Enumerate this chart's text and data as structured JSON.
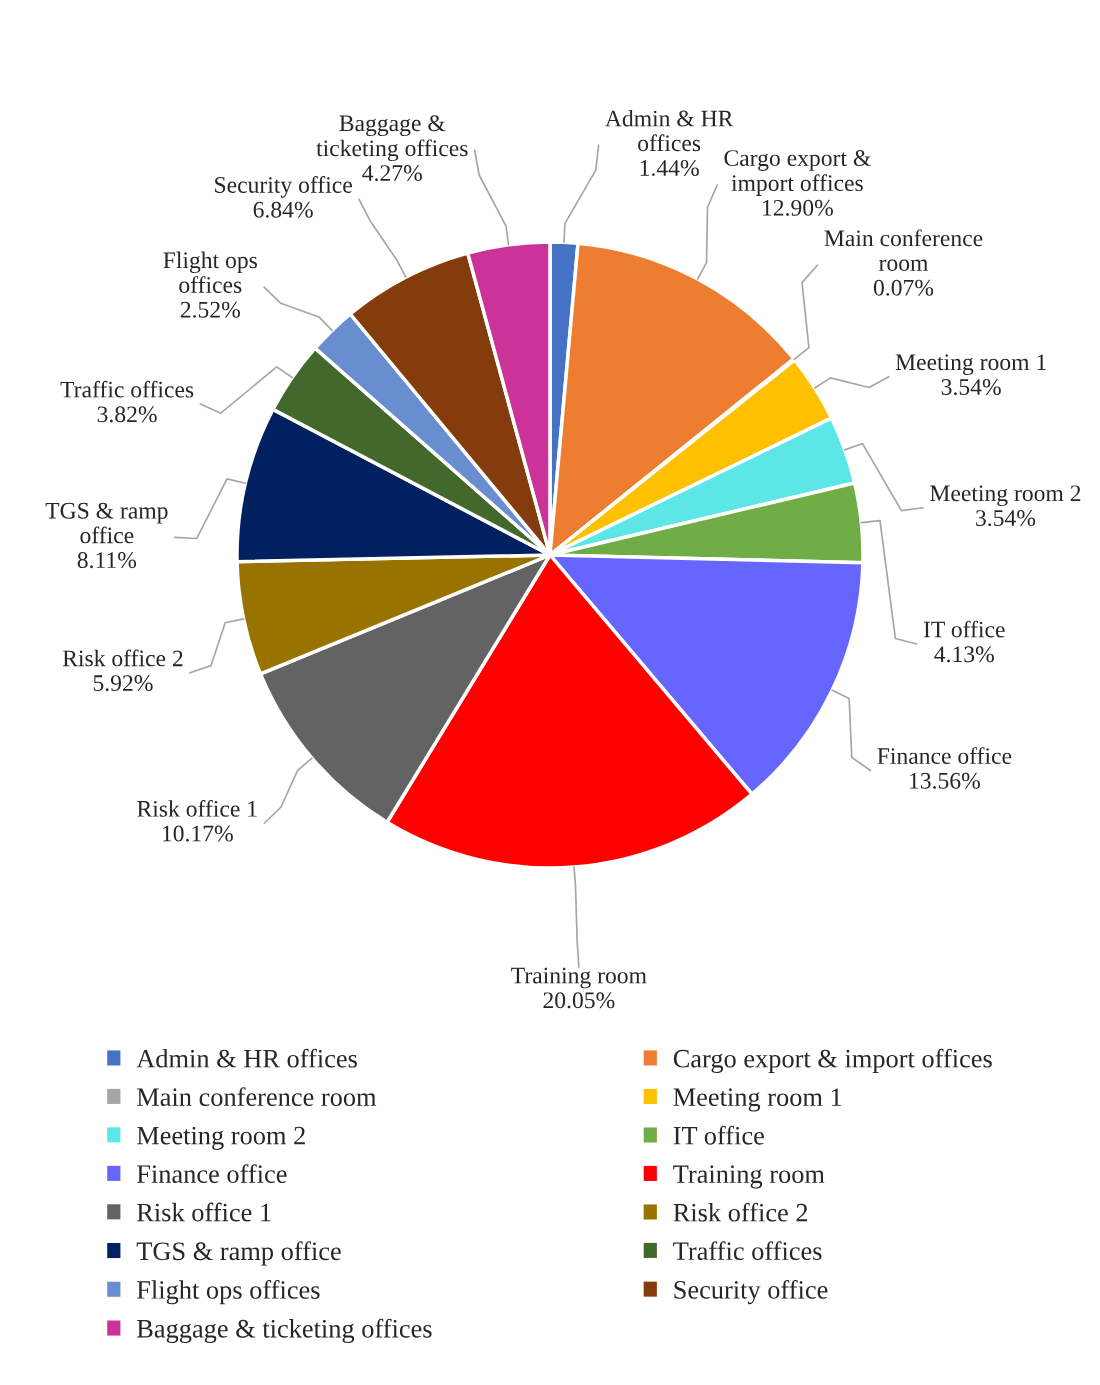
{
  "chart_data": {
    "type": "pie",
    "categories": [
      "Admin & HR offices",
      "Cargo export & import offices",
      "Main conference room",
      "Meeting room 1",
      "Meeting room 2",
      "IT office",
      "Finance office",
      "Training room",
      "Risk office 1",
      "Risk office 2",
      "TGS & ramp office",
      "Traffic offices",
      "Flight ops offices",
      "Security office",
      "Baggage & ticketing offices"
    ],
    "values": [
      1.44,
      12.9,
      0.07,
      3.54,
      3.54,
      4.13,
      13.56,
      20.05,
      10.17,
      5.92,
      8.11,
      3.82,
      2.52,
      6.84,
      4.27
    ],
    "value_labels": [
      "1.44%",
      "12.90%",
      "0.07%",
      "3.54%",
      "3.54%",
      "4.13%",
      "13.56%",
      "20.05%",
      "10.17%",
      "5.92%",
      "8.11%",
      "3.82%",
      "2.52%",
      "6.84%",
      "4.27%"
    ],
    "colors": [
      "#4472c4",
      "#ed7d31",
      "#a5a5a5",
      "#ffc000",
      "#5ce6e6",
      "#70ad47",
      "#6666ff",
      "#ff0000",
      "#636363",
      "#997300",
      "#002060",
      "#43682b",
      "#698ed0",
      "#843c0c",
      "#cc3399"
    ],
    "legend": "bottom"
  }
}
